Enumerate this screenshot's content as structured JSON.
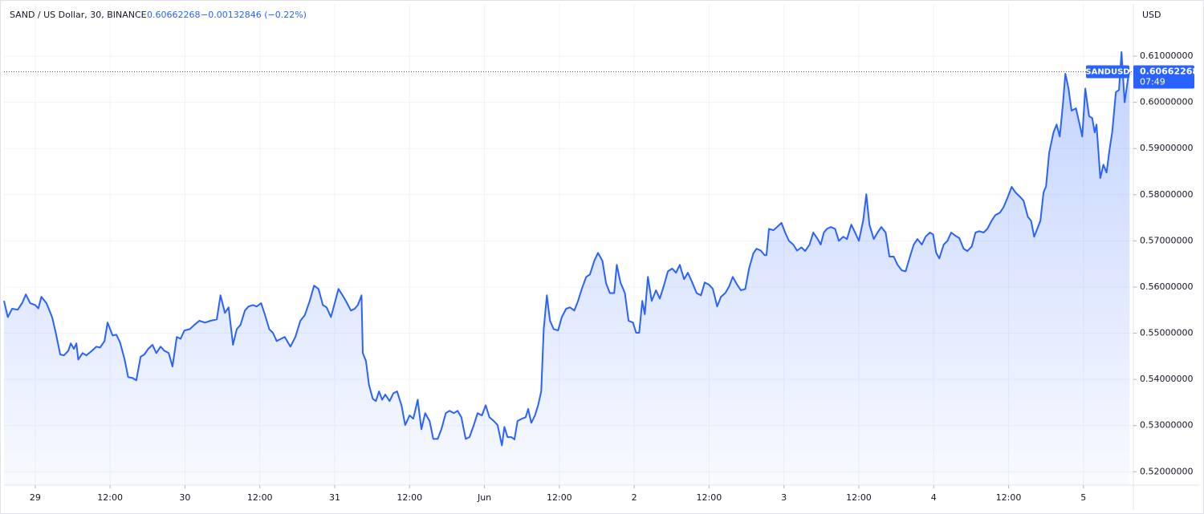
{
  "chart_data": {
    "type": "area",
    "title": "SAND / US Dollar, 30, BINANCE",
    "last_price": 0.60662268,
    "change": "−0.00132846 (−0.22%)",
    "y_axis_label": "USD",
    "symbol": "SANDUSD",
    "countdown": "07:49",
    "color": "#2962ff",
    "grid": true,
    "xlim": [
      -5.0,
      176
    ],
    "ylim": [
      0.5171,
      0.6213
    ],
    "xticks": [
      {
        "value": 0,
        "label": "29"
      },
      {
        "value": 12,
        "label": "12:00"
      },
      {
        "value": 24,
        "label": "30"
      },
      {
        "value": 36,
        "label": "12:00"
      },
      {
        "value": 48,
        "label": "31"
      },
      {
        "value": 60,
        "label": "12:00"
      },
      {
        "value": 72,
        "label": "Jun"
      },
      {
        "value": 84,
        "label": "12:00"
      },
      {
        "value": 96,
        "label": "2"
      },
      {
        "value": 108,
        "label": "12:00"
      },
      {
        "value": 120,
        "label": "3"
      },
      {
        "value": 132,
        "label": "12:00"
      },
      {
        "value": 144,
        "label": "4"
      },
      {
        "value": 156,
        "label": "12:00"
      },
      {
        "value": 168,
        "label": "5"
      }
    ],
    "yticks": [
      {
        "value": 0.52,
        "label": "0.52000000"
      },
      {
        "value": 0.53,
        "label": "0.53000000"
      },
      {
        "value": 0.54,
        "label": "0.54000000"
      },
      {
        "value": 0.55,
        "label": "0.55000000"
      },
      {
        "value": 0.56,
        "label": "0.56000000"
      },
      {
        "value": 0.57,
        "label": "0.57000000"
      },
      {
        "value": 0.58,
        "label": "0.58000000"
      },
      {
        "value": 0.59,
        "label": "0.59000000"
      },
      {
        "value": 0.6,
        "label": "0.60000000"
      },
      {
        "value": 0.61,
        "label": "0.61000000"
      }
    ],
    "x": [
      -5.0,
      -4.4,
      -3.7,
      -2.8,
      -2.1,
      -1.5,
      -0.8,
      0,
      0.5,
      1.0,
      1.8,
      2.7,
      3.3,
      4.0,
      4.6,
      5.3,
      5.7,
      6.2,
      6.6,
      6.9,
      7.6,
      8.2,
      9.1,
      9.8,
      10.4,
      11.1,
      11.6,
      12.4,
      13.0,
      13.6,
      14.3,
      14.9,
      15.6,
      16.2,
      16.9,
      17.5,
      18.1,
      18.8,
      19.4,
      20.1,
      20.7,
      21.4,
      22.0,
      22.7,
      23.3,
      23.9,
      24.8,
      25.5,
      26.3,
      27.2,
      28.1,
      29.1,
      29.7,
      30.4,
      31.0,
      31.7,
      32.3,
      32.9,
      33.6,
      34.2,
      34.9,
      35.5,
      36.2,
      36.8,
      37.5,
      38.1,
      38.7,
      39.4,
      40.0,
      40.9,
      41.7,
      42.5,
      43.2,
      44.0,
      44.7,
      45.4,
      46.1,
      46.7,
      47.4,
      48.0,
      48.6,
      49.4,
      49.9,
      50.6,
      51.2,
      51.7,
      52.3,
      52.5,
      53.0,
      53.5,
      54.1,
      54.6,
      55.1,
      55.6,
      56.1,
      56.8,
      57.4,
      58.0,
      58.7,
      59.3,
      60.0,
      60.6,
      61.3,
      61.9,
      62.5,
      63.2,
      63.8,
      64.5,
      65.1,
      65.8,
      66.4,
      67.1,
      67.7,
      68.3,
      69.0,
      69.6,
      70.3,
      70.9,
      71.6,
      72.2,
      72.8,
      73.5,
      74.1,
      74.8,
      75.2,
      75.7,
      76.3,
      76.8,
      77.3,
      78.0,
      78.6,
      79.0,
      79.5,
      80.1,
      80.6,
      81.1,
      81.5,
      82.0,
      82.5,
      83.1,
      83.8,
      84.4,
      85.1,
      85.7,
      86.4,
      87.0,
      87.6,
      88.3,
      88.9,
      89.6,
      90.2,
      90.9,
      91.5,
      92.1,
      92.8,
      93.2,
      93.8,
      94.5,
      95.1,
      95.8,
      96.3,
      96.8,
      97.3,
      97.7,
      98.2,
      98.8,
      99.5,
      100.1,
      100.8,
      101.4,
      102.1,
      102.7,
      103.3,
      104.0,
      104.6,
      105.3,
      106.0,
      106.7,
      107.3,
      108.0,
      108.6,
      109.3,
      109.9,
      110.6,
      111.2,
      111.8,
      112.5,
      113.1,
      113.8,
      114.4,
      115.1,
      115.6,
      116.3,
      116.9,
      117.2,
      117.6,
      118.3,
      118.9,
      119.6,
      120.2,
      120.8,
      121.5,
      122.1,
      122.8,
      123.4,
      124.1,
      124.7,
      125.4,
      125.9,
      126.4,
      126.9,
      127.5,
      128.2,
      128.8,
      129.5,
      130.1,
      130.8,
      131.4,
      132.0,
      132.7,
      133.2,
      133.7,
      134.4,
      135.0,
      135.6,
      136.3,
      136.9,
      137.6,
      138.2,
      138.9,
      139.5,
      140.2,
      140.8,
      141.4,
      142.1,
      142.7,
      143.4,
      143.9,
      144.4,
      144.9,
      145.6,
      146.2,
      146.8,
      147.5,
      148.1,
      148.8,
      149.4,
      150.1,
      150.7,
      151.3,
      152.0,
      152.6,
      153.3,
      153.9,
      154.6,
      155.2,
      155.9,
      156.5,
      157.1,
      157.8,
      158.4,
      159.1,
      159.6,
      160.1,
      160.6,
      161.1,
      161.6,
      162.0,
      162.5,
      163.2,
      163.7,
      164.2,
      164.7,
      165.1,
      165.6,
      166.1,
      166.8,
      167.4,
      167.8,
      168.3,
      168.9,
      169.4,
      169.8,
      170.1,
      170.7,
      171.2,
      171.7,
      172.2,
      172.6,
      173.2,
      173.7,
      174.1,
      174.6,
      175.2,
      175.4
    ],
    "values": [
      0.557,
      0.5535,
      0.5553,
      0.5551,
      0.5565,
      0.5584,
      0.5565,
      0.5561,
      0.5554,
      0.5579,
      0.5565,
      0.5535,
      0.5501,
      0.5454,
      0.5452,
      0.5462,
      0.5478,
      0.5466,
      0.5478,
      0.5443,
      0.5457,
      0.5452,
      0.5462,
      0.5471,
      0.5469,
      0.5483,
      0.5523,
      0.5495,
      0.5497,
      0.548,
      0.5445,
      0.5405,
      0.5403,
      0.5398,
      0.5449,
      0.5454,
      0.5466,
      0.5475,
      0.5457,
      0.5471,
      0.5462,
      0.5457,
      0.5428,
      0.5492,
      0.5488,
      0.5506,
      0.5509,
      0.5518,
      0.5527,
      0.5523,
      0.5527,
      0.553,
      0.5582,
      0.5544,
      0.5556,
      0.5475,
      0.5509,
      0.5518,
      0.5549,
      0.5558,
      0.5561,
      0.5558,
      0.5565,
      0.5541,
      0.5509,
      0.5501,
      0.5483,
      0.5488,
      0.5492,
      0.5471,
      0.5492,
      0.5527,
      0.5539,
      0.557,
      0.5603,
      0.5596,
      0.5561,
      0.5556,
      0.5535,
      0.5565,
      0.5596,
      0.5579,
      0.5567,
      0.5549,
      0.5553,
      0.5561,
      0.5582,
      0.5457,
      0.544,
      0.5388,
      0.5358,
      0.5353,
      0.5374,
      0.5356,
      0.5367,
      0.5353,
      0.537,
      0.5374,
      0.5344,
      0.5301,
      0.5322,
      0.5315,
      0.5356,
      0.5292,
      0.5327,
      0.531,
      0.5271,
      0.5271,
      0.5292,
      0.5327,
      0.5332,
      0.5327,
      0.5332,
      0.5318,
      0.5271,
      0.5275,
      0.5301,
      0.5327,
      0.5322,
      0.5344,
      0.5318,
      0.531,
      0.5301,
      0.5257,
      0.5297,
      0.5275,
      0.5275,
      0.527,
      0.531,
      0.5315,
      0.5318,
      0.5336,
      0.5306,
      0.5322,
      0.5344,
      0.5374,
      0.5509,
      0.5582,
      0.5527,
      0.5509,
      0.5506,
      0.5535,
      0.5553,
      0.5556,
      0.5549,
      0.557,
      0.5596,
      0.5622,
      0.5627,
      0.5657,
      0.5674,
      0.5657,
      0.5608,
      0.5587,
      0.5587,
      0.5648,
      0.561,
      0.5587,
      0.5527,
      0.5523,
      0.5501,
      0.5501,
      0.557,
      0.5541,
      0.5622,
      0.557,
      0.5593,
      0.5575,
      0.5605,
      0.5634,
      0.564,
      0.5631,
      0.5648,
      0.5617,
      0.5631,
      0.561,
      0.5587,
      0.5582,
      0.561,
      0.5605,
      0.5596,
      0.5558,
      0.5579,
      0.5587,
      0.5601,
      0.5622,
      0.5605,
      0.5593,
      0.5596,
      0.564,
      0.5673,
      0.5683,
      0.5679,
      0.5669,
      0.5669,
      0.5726,
      0.5723,
      0.573,
      0.5739,
      0.5718,
      0.57,
      0.5692,
      0.5679,
      0.5686,
      0.5678,
      0.5692,
      0.5718,
      0.5704,
      0.5692,
      0.5718,
      0.5726,
      0.573,
      0.5726,
      0.57,
      0.5709,
      0.5704,
      0.5735,
      0.5718,
      0.57,
      0.5744,
      0.5801,
      0.5735,
      0.5704,
      0.5718,
      0.573,
      0.5718,
      0.5666,
      0.5666,
      0.5648,
      0.5636,
      0.5634,
      0.5666,
      0.5692,
      0.5704,
      0.5692,
      0.5709,
      0.5718,
      0.5714,
      0.5674,
      0.5662,
      0.5692,
      0.57,
      0.5718,
      0.5711,
      0.5706,
      0.5683,
      0.5678,
      0.5688,
      0.5718,
      0.5721,
      0.5718,
      0.5726,
      0.5744,
      0.5756,
      0.5761,
      0.5773,
      0.5796,
      0.5817,
      0.5805,
      0.5796,
      0.5787,
      0.5752,
      0.5744,
      0.5709,
      0.5726,
      0.5744,
      0.5805,
      0.5818,
      0.5891,
      0.5935,
      0.5952,
      0.5926,
      0.5996,
      0.6062,
      0.603,
      0.5982,
      0.5987,
      0.5952,
      0.5926,
      0.603,
      0.597,
      0.5966,
      0.5935,
      0.5952,
      0.5836,
      0.5865,
      0.5848,
      0.59,
      0.5935,
      0.6022,
      0.6027,
      0.6109,
      0.6,
      0.6057,
      0.6066
    ]
  }
}
